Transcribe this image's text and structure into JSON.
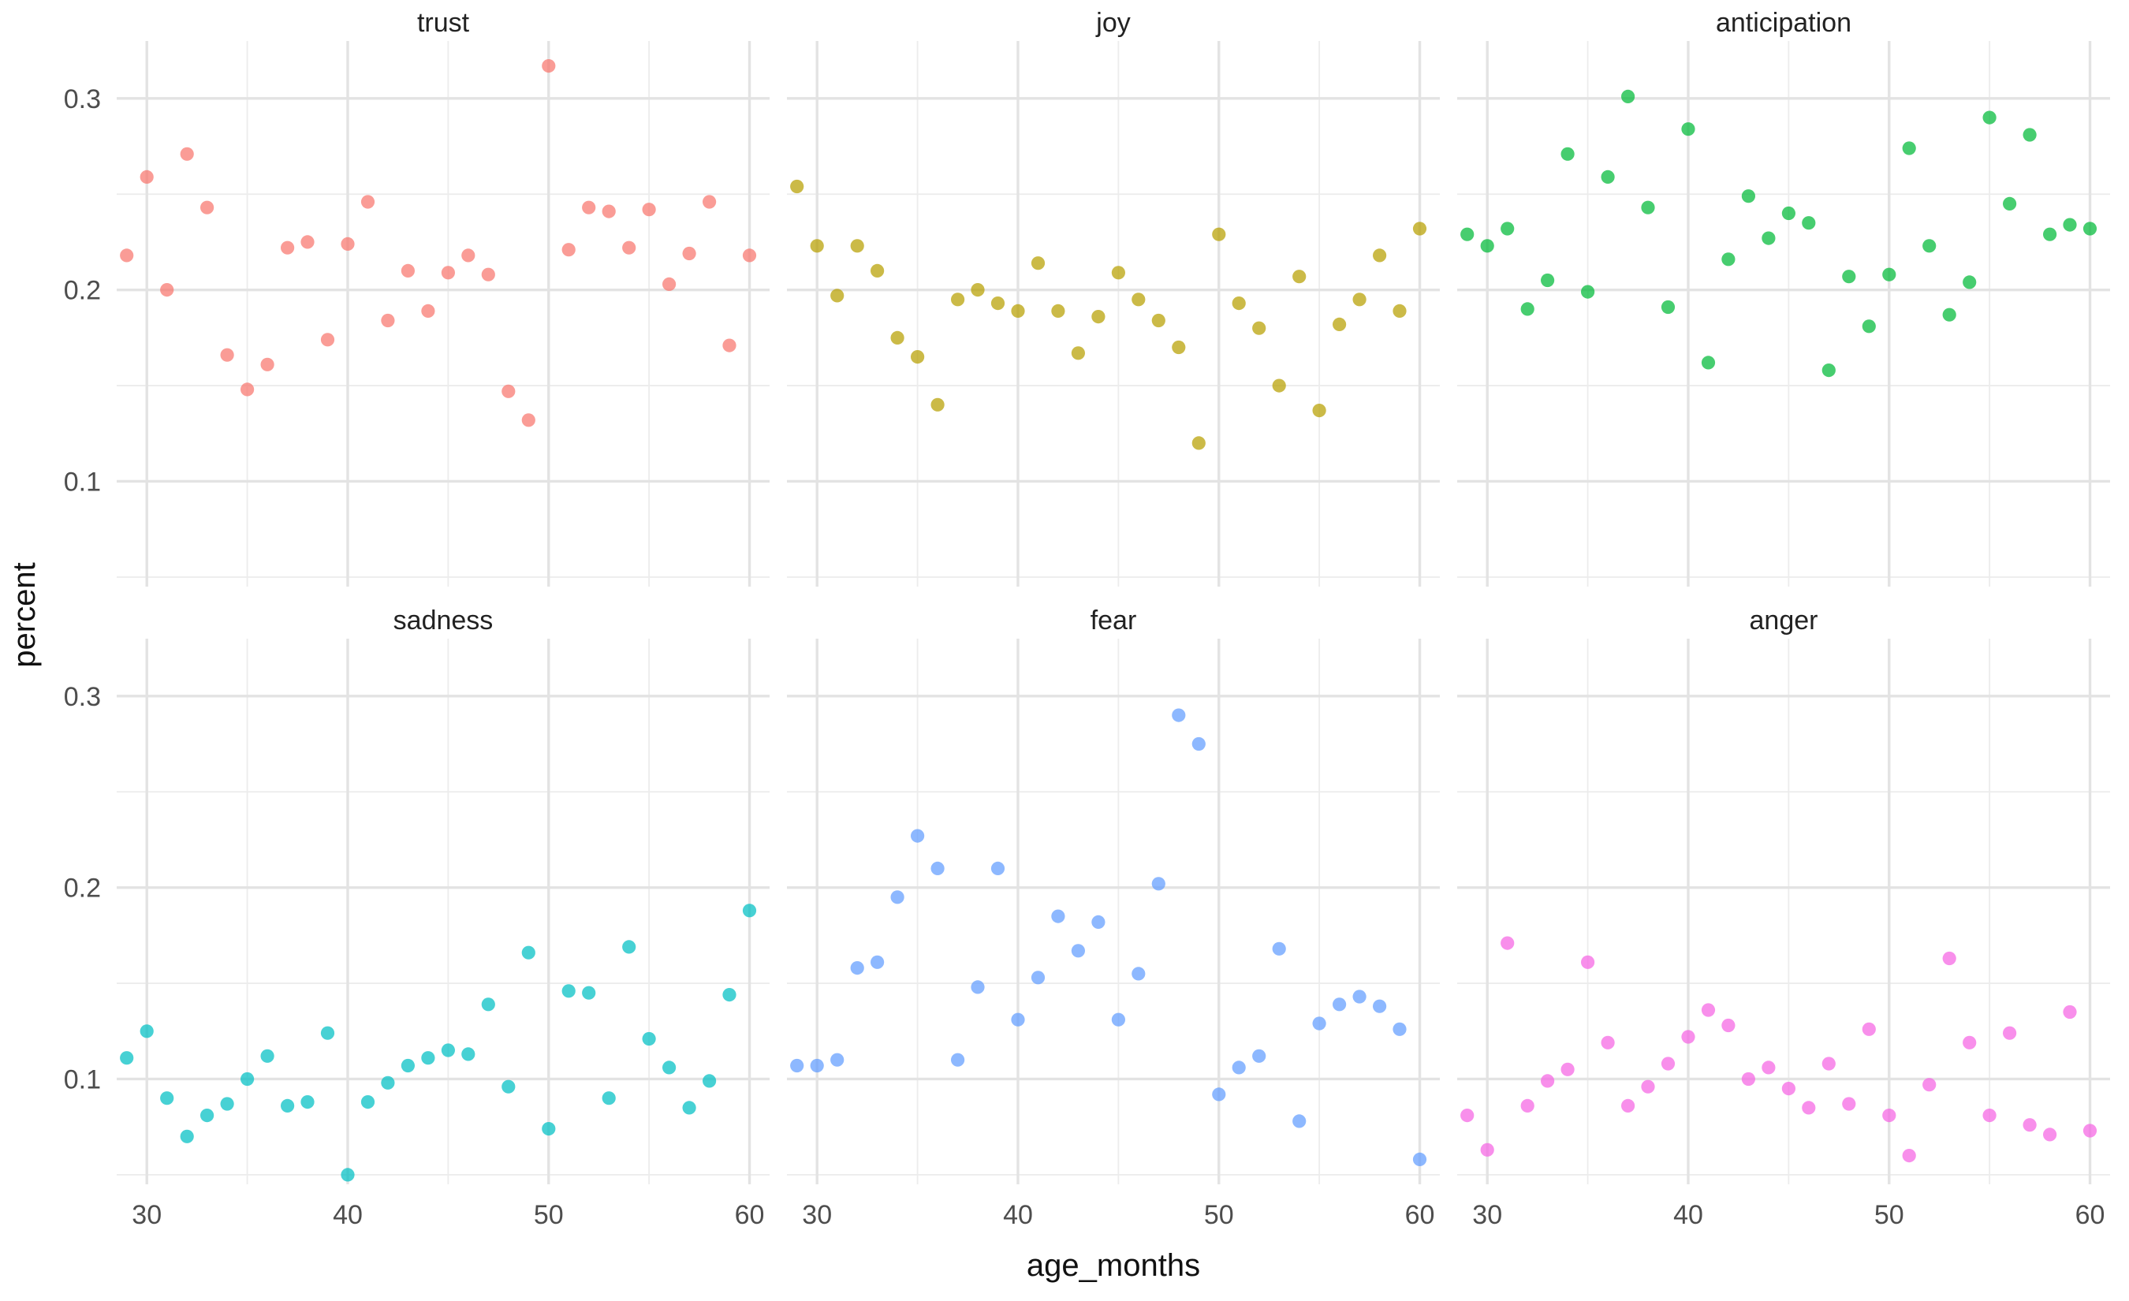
{
  "chart_data": {
    "type": "scatter",
    "layout": "facet_wrap 2 rows x 3 columns",
    "xlabel": "age_months",
    "ylabel": "percent",
    "xlim": [
      28.5,
      61
    ],
    "ylim": [
      0.045,
      0.33
    ],
    "x_ticks": [
      30,
      40,
      50,
      60
    ],
    "x_minor_ticks": [
      35,
      45,
      55
    ],
    "y_ticks": [
      0.1,
      0.2,
      0.3
    ],
    "y_tick_labels": [
      "0.1",
      "0.2",
      "0.3"
    ],
    "y_minor_ticks": [
      0.05,
      0.15,
      0.25
    ],
    "grid": true,
    "legend": "none",
    "age_months": [
      29,
      30,
      31,
      32,
      33,
      34,
      35,
      36,
      37,
      38,
      39,
      40,
      41,
      42,
      43,
      44,
      45,
      46,
      47,
      48,
      49,
      50,
      51,
      52,
      53,
      54,
      55,
      56,
      57,
      58,
      59,
      60
    ],
    "facets": [
      {
        "name": "trust",
        "color": "#F8766D",
        "values": [
          0.218,
          0.259,
          0.2,
          0.271,
          0.243,
          0.166,
          0.148,
          0.161,
          0.222,
          0.225,
          0.174,
          0.224,
          0.246,
          0.184,
          0.21,
          0.189,
          0.209,
          0.218,
          0.208,
          0.147,
          0.132,
          0.317,
          0.221,
          0.243,
          0.241,
          0.222,
          0.242,
          0.203,
          0.219,
          0.246,
          0.171,
          0.218
        ]
      },
      {
        "name": "joy",
        "color": "#B79F00",
        "values": [
          0.254,
          0.223,
          0.197,
          0.223,
          0.21,
          0.175,
          0.165,
          0.14,
          0.195,
          0.2,
          0.193,
          0.189,
          0.214,
          0.189,
          0.167,
          0.186,
          0.209,
          0.195,
          0.184,
          0.17,
          0.12,
          0.229,
          0.193,
          0.18,
          0.15,
          0.207,
          0.137,
          0.182,
          0.195,
          0.218,
          0.189,
          0.232
        ]
      },
      {
        "name": "anticipation",
        "color": "#00BA38",
        "values": [
          0.229,
          0.223,
          0.232,
          0.19,
          0.205,
          0.271,
          0.199,
          0.259,
          0.301,
          0.243,
          0.191,
          0.284,
          0.162,
          0.216,
          0.249,
          0.227,
          0.24,
          0.235,
          0.158,
          0.207,
          0.181,
          0.208,
          0.274,
          0.223,
          0.187,
          0.204,
          0.29,
          0.245,
          0.281,
          0.229,
          0.234,
          0.232
        ]
      },
      {
        "name": "sadness",
        "color": "#00BFC4",
        "values": [
          0.111,
          0.125,
          0.09,
          0.07,
          0.081,
          0.087,
          0.1,
          0.112,
          0.086,
          0.088,
          0.124,
          0.05,
          0.088,
          0.098,
          0.107,
          0.111,
          0.115,
          0.113,
          0.139,
          0.096,
          0.166,
          0.074,
          0.146,
          0.145,
          0.09,
          0.169,
          0.121,
          0.106,
          0.085,
          0.099,
          0.144,
          0.188
        ]
      },
      {
        "name": "fear",
        "color": "#619CFF",
        "values": [
          0.107,
          0.107,
          0.11,
          0.158,
          0.161,
          0.195,
          0.227,
          0.21,
          0.11,
          0.148,
          0.21,
          0.131,
          0.153,
          0.185,
          0.167,
          0.182,
          0.131,
          0.155,
          0.202,
          0.29,
          0.275,
          0.092,
          0.106,
          0.112,
          0.168,
          0.078,
          0.129,
          0.139,
          0.143,
          0.138,
          0.126,
          0.058
        ]
      },
      {
        "name": "anger",
        "color": "#F564E3",
        "values": [
          0.081,
          0.063,
          0.171,
          0.086,
          0.099,
          0.105,
          0.161,
          0.119,
          0.086,
          0.096,
          0.108,
          0.122,
          0.136,
          0.128,
          0.1,
          0.106,
          0.095,
          0.085,
          0.108,
          0.087,
          0.126,
          0.081,
          0.06,
          0.097,
          0.163,
          0.119,
          0.081,
          0.124,
          0.076,
          0.071,
          0.135,
          0.073
        ]
      }
    ]
  }
}
